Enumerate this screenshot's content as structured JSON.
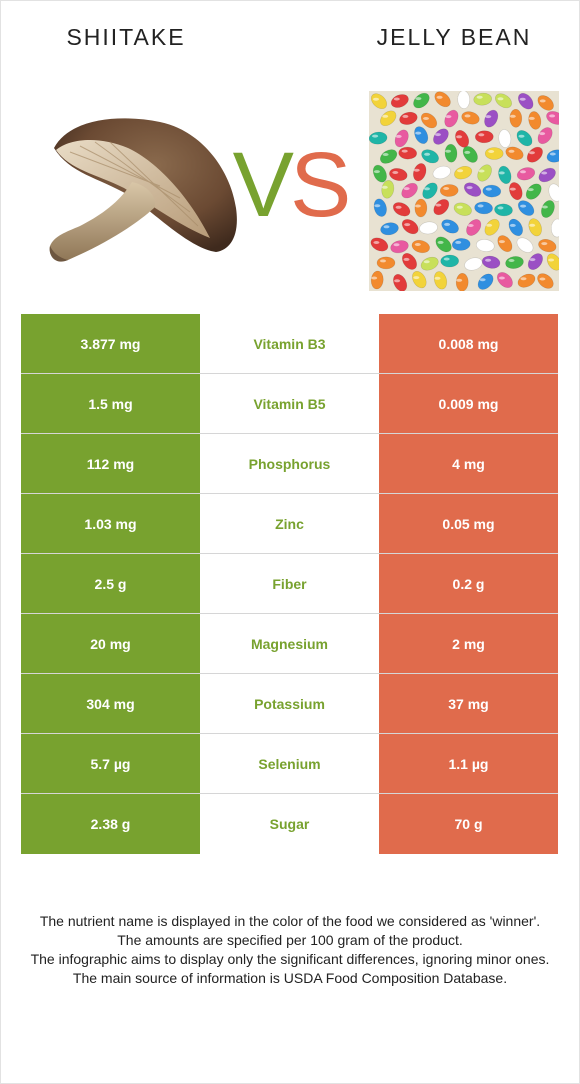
{
  "foods": {
    "left": {
      "name": "SHIITAKE",
      "color": "#78a22f",
      "image_label": "shiitake-mushroom-image"
    },
    "right": {
      "name": "JELLY BEAN",
      "color": "#e06b4c",
      "image_label": "jelly-beans-image"
    }
  },
  "vs": {
    "v": "V",
    "s": "S"
  },
  "rows": [
    {
      "left": "3.877 mg",
      "nutrient": "Vitamin B3",
      "right": "0.008 mg"
    },
    {
      "left": "1.5 mg",
      "nutrient": "Vitamin B5",
      "right": "0.009 mg"
    },
    {
      "left": "112 mg",
      "nutrient": "Phosphorus",
      "right": "4 mg"
    },
    {
      "left": "1.03 mg",
      "nutrient": "Zinc",
      "right": "0.05 mg"
    },
    {
      "left": "2.5 g",
      "nutrient": "Fiber",
      "right": "0.2 g"
    },
    {
      "left": "20 mg",
      "nutrient": "Magnesium",
      "right": "2 mg"
    },
    {
      "left": "304 mg",
      "nutrient": "Potassium",
      "right": "37 mg"
    },
    {
      "left": "5.7 µg",
      "nutrient": "Selenium",
      "right": "1.1 µg"
    },
    {
      "left": "2.38 g",
      "nutrient": "Sugar",
      "right": "70 g"
    }
  ],
  "notes": [
    "The nutrient name is displayed in the color of the food we considered as 'winner'.",
    "The amounts are specified per 100 gram of the product.",
    "The infographic aims to display only the significant differences, ignoring minor ones.",
    "The main source of information is USDA Food Composition Database."
  ]
}
